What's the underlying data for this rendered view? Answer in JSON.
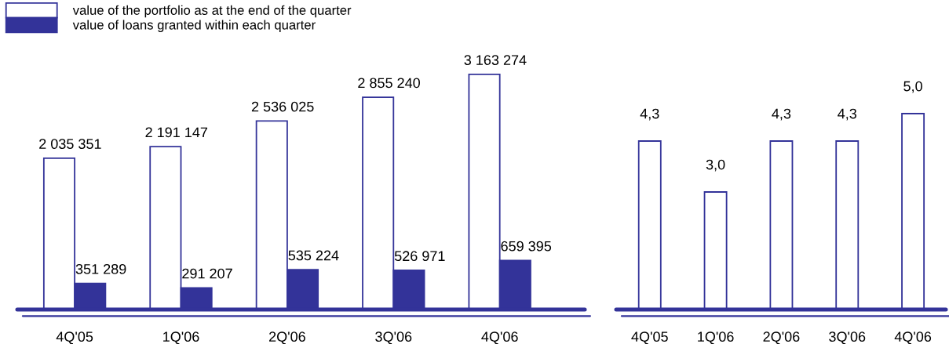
{
  "chart_data": [
    {
      "type": "bar",
      "categories": [
        "4Q'05",
        "1Q'06",
        "2Q'06",
        "3Q'06",
        "4Q'06"
      ],
      "tick_labels": "x",
      "legend": "top left",
      "series": [
        {
          "name": "value of the portfolio as at the end of the quarter",
          "color": "#ffffff",
          "values": [
            2035351,
            2191147,
            2536025,
            2855240,
            3163274
          ],
          "value_labels": [
            "2 035 351",
            "2 191 147",
            "2 536 025",
            "2 855 240",
            "3 163 274"
          ]
        },
        {
          "name": "value of loans granted within each quarter",
          "color": "#333399",
          "values": [
            351289,
            291207,
            535224,
            526971,
            659395
          ],
          "value_labels": [
            "351 289",
            "291 207",
            "535 224",
            "526 971",
            "659 395"
          ]
        }
      ]
    },
    {
      "type": "bar",
      "categories": [
        "4Q'05",
        "1Q'06",
        "2Q'06",
        "3Q'06",
        "4Q'06"
      ],
      "tick_labels": "x",
      "series": [
        {
          "color": "#ffffff",
          "values": [
            4.3,
            3.0,
            4.3,
            4.3,
            5.0
          ],
          "value_labels": [
            "4,3",
            "3,0",
            "4,3",
            "4,3",
            "5,0"
          ]
        }
      ]
    }
  ]
}
